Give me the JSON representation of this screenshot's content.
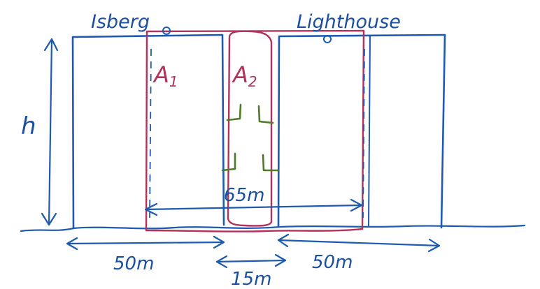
{
  "labels": {
    "left_building": "Isberg",
    "right_building": "Lighthouse",
    "height": "h",
    "area_1": "A",
    "area_1_sub": "1",
    "area_2": "A",
    "area_2_sub": "2",
    "span_65": "65m",
    "left_50": "50m",
    "gap_15": "15m",
    "right_50": "50m"
  },
  "colors": {
    "buildings": "#1d5ab0",
    "areas": "#b3325a",
    "vegetation": "#4f7a2a"
  }
}
